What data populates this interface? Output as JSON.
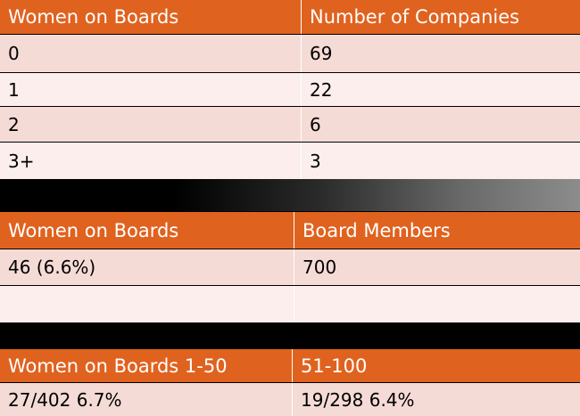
{
  "table1": {
    "headers": [
      "Women on Boards",
      "Number of Companies"
    ],
    "rows": [
      [
        "0",
        "69"
      ],
      [
        "1",
        "22"
      ],
      [
        "2",
        "6"
      ],
      [
        "3+",
        "3"
      ]
    ]
  },
  "table2": {
    "headers": [
      "Women on Boards",
      "Board Members"
    ],
    "rows": [
      [
        "46 (6.6%)",
        "700"
      ],
      [
        "",
        ""
      ]
    ]
  },
  "table3": {
    "headers": [
      "Women on Boards 1-50",
      "51-100"
    ],
    "rows": [
      [
        "27/402 6.7%",
        "19/298 6.4%"
      ]
    ]
  },
  "colors": {
    "header_bg": "#e0621f",
    "row_light": "#f5dbd6",
    "row_lighter": "#fbeeec",
    "band": "#000000"
  }
}
